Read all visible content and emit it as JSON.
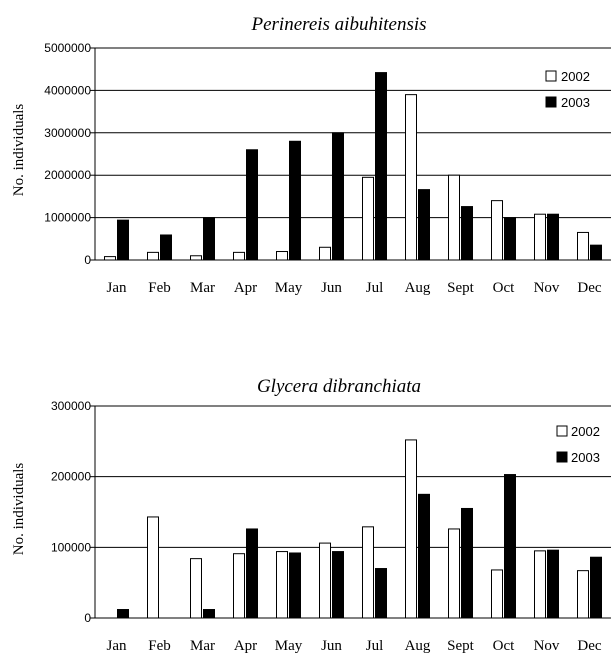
{
  "chart_data": [
    {
      "type": "bar",
      "title": "Perinereis aibuhitensis",
      "ylabel": "No. individuals",
      "xlabel": "",
      "categories": [
        "Jan",
        "Feb",
        "Mar",
        "Apr",
        "May",
        "Jun",
        "Jul",
        "Aug",
        "Sept",
        "Oct",
        "Nov",
        "Dec"
      ],
      "ylim": [
        0,
        5000000
      ],
      "yticks": [
        "0",
        "1000000",
        "2000000",
        "3000000",
        "4000000",
        "5000000"
      ],
      "grid": true,
      "legend_position": "top-right",
      "series": [
        {
          "name": "2002",
          "color": "#ffffff",
          "values": [
            80000,
            180000,
            100000,
            180000,
            200000,
            300000,
            1950000,
            3900000,
            2000000,
            1400000,
            1080000,
            650000
          ]
        },
        {
          "name": "2003",
          "color": "#000000",
          "values": [
            940000,
            590000,
            1000000,
            2600000,
            2800000,
            3000000,
            4420000,
            1660000,
            1260000,
            1000000,
            1080000,
            350000
          ]
        }
      ]
    },
    {
      "type": "bar",
      "title": "Glycera dibranchiata",
      "ylabel": "No. individuals",
      "xlabel": "",
      "categories": [
        "Jan",
        "Feb",
        "Mar",
        "Apr",
        "May",
        "Jun",
        "Jul",
        "Aug",
        "Sept",
        "Oct",
        "Nov",
        "Dec"
      ],
      "ylim": [
        0,
        300000
      ],
      "yticks": [
        "0",
        "100000",
        "200000",
        "300000"
      ],
      "grid": true,
      "legend_position": "top-right",
      "series": [
        {
          "name": "2002",
          "color": "#ffffff",
          "values": [
            0,
            143000,
            84000,
            91000,
            94000,
            106000,
            129000,
            252000,
            126000,
            68000,
            95000,
            67000
          ]
        },
        {
          "name": "2003",
          "color": "#000000",
          "values": [
            12000,
            0,
            12000,
            126000,
            92000,
            94000,
            70000,
            175000,
            155000,
            203000,
            96000,
            86000
          ]
        }
      ]
    }
  ]
}
